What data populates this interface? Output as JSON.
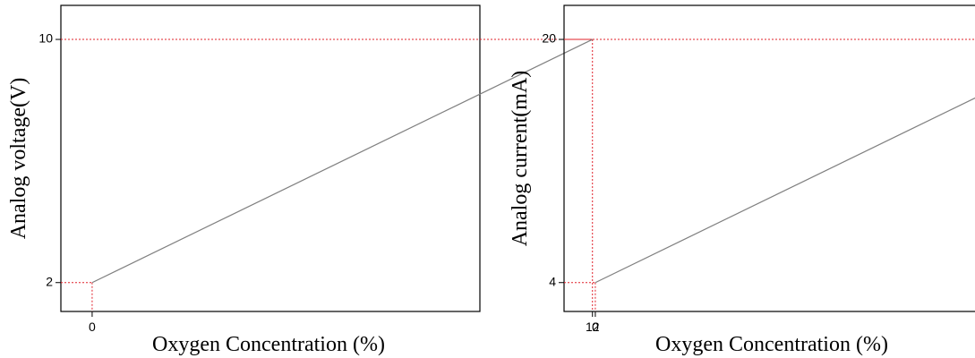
{
  "chart_data": [
    {
      "type": "line",
      "title": "",
      "xlabel": "Oxygen Concentration (%)",
      "ylabel": "Analog voltage(V)",
      "x": [
        0,
        12
      ],
      "y": [
        2,
        10
      ],
      "xticks": [
        "0",
        "12"
      ],
      "yticks": [
        "2",
        "10"
      ],
      "xlim": [
        -0.75,
        9.3
      ],
      "ylim": [
        1.05,
        11.12
      ],
      "grid": false,
      "line_color": "#808080",
      "guide_color": "#e0202a"
    },
    {
      "type": "line",
      "title": "",
      "xlabel": "Oxygen Concentration (%)",
      "ylabel": "Analog current(mA)",
      "x": [
        0,
        12
      ],
      "y": [
        4,
        20
      ],
      "xticks": [
        "0",
        "12"
      ],
      "yticks": [
        "4",
        "20"
      ],
      "xlim": [
        -0.75,
        9.3
      ],
      "ylim": [
        2.1,
        22.24
      ],
      "grid": false,
      "line_color": "#808080",
      "guide_color": "#e0202a"
    }
  ]
}
